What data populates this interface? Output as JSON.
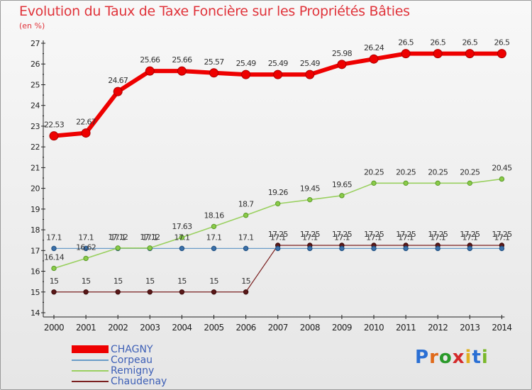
{
  "title": "Evolution du Taux de Taxe Foncière sur les Propriétés Bâties",
  "subtitle": "(en %)",
  "logo": {
    "letters": [
      "P",
      "r",
      "o",
      "x",
      "i",
      "t",
      "i"
    ],
    "colors": [
      "#2a6fd4",
      "#e06a1a",
      "#2a9a2a",
      "#d42a2a",
      "#e0b020",
      "#2a6fd4",
      "#7ab82a"
    ]
  },
  "chart_data": {
    "type": "line",
    "title": "Evolution du Taux de Taxe Foncière sur les Propriétés Bâties",
    "ylabel": "(en %)",
    "xlabel": "",
    "ylim": [
      14,
      27
    ],
    "yticks": [
      14,
      15,
      16,
      17,
      18,
      19,
      20,
      21,
      22,
      23,
      24,
      25,
      26,
      27
    ],
    "categories": [
      "2000",
      "2001",
      "2002",
      "2003",
      "2004",
      "2005",
      "2006",
      "2007",
      "2008",
      "2009",
      "2010",
      "2011",
      "2012",
      "2013",
      "2014"
    ],
    "grid": false,
    "legend": "bottom-left",
    "series": [
      {
        "name": "CHAGNY",
        "color": "#ee0000",
        "values": [
          22.53,
          22.67,
          24.67,
          25.66,
          25.66,
          25.57,
          25.49,
          25.49,
          25.49,
          25.98,
          26.24,
          26.5,
          26.5,
          26.5,
          26.5
        ]
      },
      {
        "name": "Corpeau",
        "color": "#6a9cc8",
        "values": [
          17.1,
          17.1,
          17.1,
          17.1,
          17.1,
          17.1,
          17.1,
          17.1,
          17.1,
          17.1,
          17.1,
          17.1,
          17.1,
          17.1,
          17.1
        ]
      },
      {
        "name": "Remigny",
        "color": "#9ad060",
        "values": [
          16.14,
          16.62,
          17.12,
          17.12,
          17.63,
          18.16,
          18.7,
          19.26,
          19.45,
          19.65,
          20.25,
          20.25,
          20.25,
          20.25,
          20.45
        ]
      },
      {
        "name": "Chaudenay",
        "color": "#7a2020",
        "values": [
          15,
          15,
          15,
          15,
          15,
          15,
          15,
          17.25,
          17.25,
          17.25,
          17.25,
          17.25,
          17.25,
          17.25,
          17.25
        ]
      }
    ]
  }
}
